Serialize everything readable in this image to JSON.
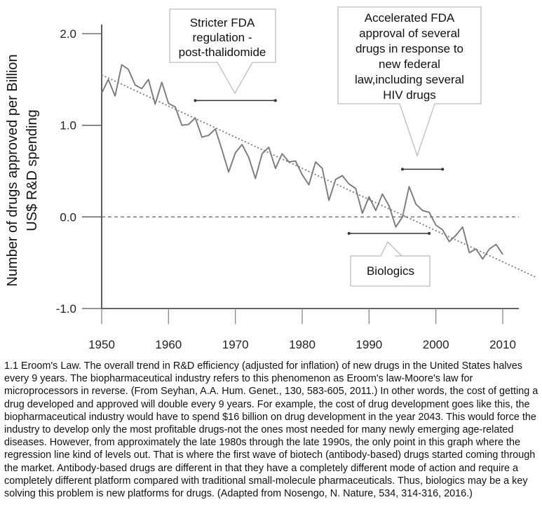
{
  "chart_data": {
    "type": "line",
    "xlabel": "",
    "ylabel_lines": [
      "Number of drugs approved per Billion",
      "US$ R&D spending"
    ],
    "xlim": [
      1950,
      2015
    ],
    "ylim": [
      -1.0,
      2.0
    ],
    "x_ticks": [
      1950,
      1960,
      1970,
      1980,
      1990,
      2000,
      2010
    ],
    "y_ticks": [
      2.0,
      1.0,
      0.0,
      -1.0
    ],
    "y_tick_labels": [
      "2.0",
      "1.0",
      "0.0",
      "-1.0"
    ],
    "grid": false,
    "legend": "none",
    "series": [
      {
        "x": [
          1950,
          1951,
          1952,
          1953,
          1954,
          1955,
          1956,
          1957,
          1958,
          1959,
          1960,
          1961,
          1962,
          1963,
          1964,
          1965,
          1966,
          1967,
          1968,
          1969,
          1970,
          1971,
          1972,
          1973,
          1974,
          1975,
          1976,
          1977,
          1978,
          1979,
          1980,
          1981,
          1982,
          1983,
          1984,
          1985,
          1986,
          1987,
          1988,
          1989,
          1990,
          1991,
          1992,
          1993,
          1994,
          1995,
          1996,
          1997,
          1998,
          1999,
          2000,
          2001,
          2002,
          2003,
          2004,
          2005,
          2006,
          2007,
          2008,
          2009,
          2010
        ],
        "y": [
          1.35,
          1.5,
          1.32,
          1.66,
          1.61,
          1.44,
          1.4,
          1.5,
          1.23,
          1.47,
          1.24,
          1.2,
          1.0,
          1.01,
          1.08,
          0.87,
          0.89,
          0.96,
          0.73,
          0.49,
          0.7,
          0.79,
          0.65,
          0.42,
          0.69,
          0.76,
          0.53,
          0.69,
          0.6,
          0.61,
          0.46,
          0.35,
          0.6,
          0.53,
          0.18,
          0.41,
          0.45,
          0.36,
          0.31,
          0.04,
          0.22,
          0.07,
          0.25,
          0.12,
          -0.11,
          0.0,
          0.33,
          0.14,
          0.07,
          0.05,
          -0.09,
          -0.14,
          -0.27,
          -0.2,
          -0.11,
          -0.39,
          -0.35,
          -0.46,
          -0.35,
          -0.3,
          -0.41
        ]
      }
    ],
    "trend_line": {
      "x": [
        1950,
        2015
      ],
      "y": [
        1.55,
        -0.66
      ]
    },
    "zero_line": 0.0,
    "annotations": [
      {
        "id": "fda-regulation",
        "lines": [
          "Stricter FDA",
          "regulation -",
          "post-thalidomide"
        ],
        "period": [
          1964,
          1976
        ],
        "period_y": 1.27,
        "direction": "down"
      },
      {
        "id": "accelerated-approval",
        "lines": [
          "Accelerated FDA",
          "approval of several",
          "drugs in response to",
          "new federal",
          "law,including several",
          "HIV drugs"
        ],
        "period": [
          1995,
          2001
        ],
        "period_y": 0.52,
        "direction": "down"
      },
      {
        "id": "biologics",
        "lines": [
          "Biologics"
        ],
        "period": [
          1987,
          1999
        ],
        "period_y": -0.18,
        "direction": "up"
      }
    ]
  },
  "caption": "1.1 Eroom's Law. The overall trend in R&D efficiency (adjusted for inflation) of new drugs in the United States halves every 9 years. The biopharmaceutical industry refers to this phenomenon as Eroom's law-Moore's law for microprocessors in reverse. (From Seyhan, A.A. Hum. Genet., 130, 583-605, 2011.) In other words, the cost of getting a drug developed and approved will double every 9 years. For example, the cost of drug development goes like this, the biopharmaceutical industry would have to spend $16 billion on drug development in the year 2043. This would force the industry to develop only the most profitable drugs-not the ones most needed for many newly emerging age-related diseases. However, from approximately the late 1980s through the late 1990s, the only point in this graph where the regression line kind of levels out. That is where the first wave of biotech (antibody-based) drugs started coming through the market. Antibody-based drugs are different in that they have a completely different mode of action and require a completely different platform compared with traditional small-molecule pharmaceuticals. Thus, biologics may be a key solving this problem is new platforms for drugs. (Adapted from Nosengo, N. Nature, 534, 314-316, 2016.)"
}
